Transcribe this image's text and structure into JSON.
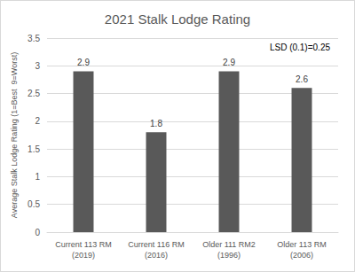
{
  "chart_data": {
    "type": "bar",
    "title": "2021 Stalk Lodge Rating",
    "y_label": "Average Stalk Lodge Rating (1=Best  9=Worst)",
    "annotation": "LSD (0.1)=0.25",
    "categories": [
      "Current 113 RM\n(2019)",
      "Current 116 RM\n(2016)",
      "Older 111 RM2\n(1996)",
      "Older 113 RM\n(2006)"
    ],
    "values": [
      2.9,
      1.8,
      2.9,
      2.6
    ],
    "color": "#595959",
    "ylim": [
      0,
      3.5
    ],
    "yticks": [
      0,
      0.5,
      1,
      1.5,
      2,
      2.5,
      3,
      3.5
    ],
    "grid": true,
    "data_labels": true
  }
}
